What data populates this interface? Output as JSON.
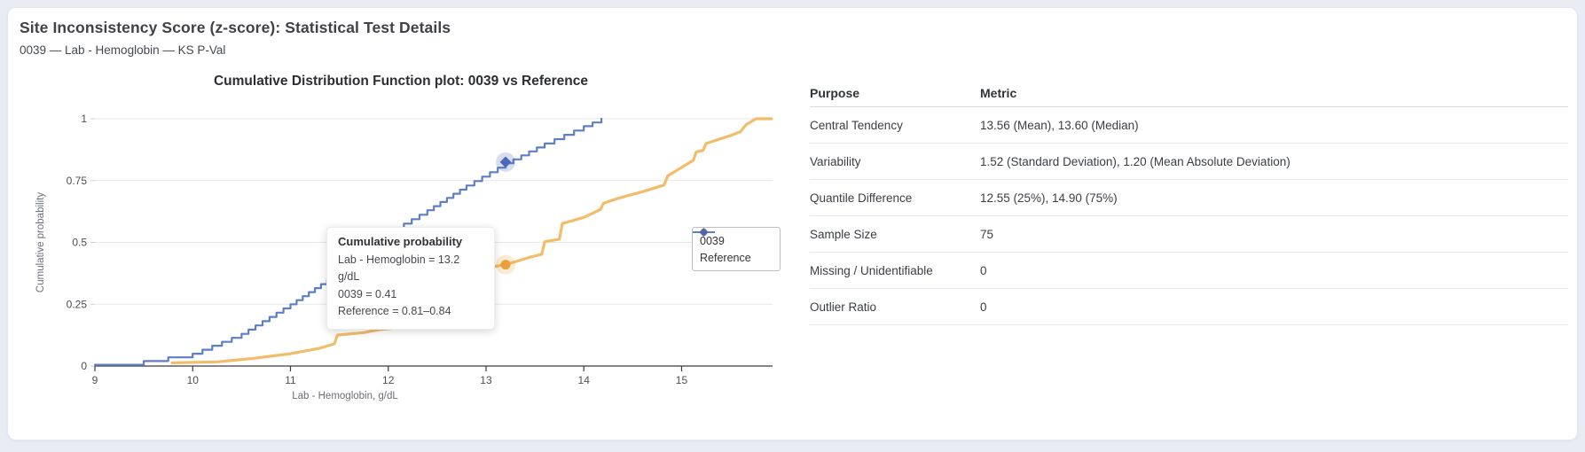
{
  "page": {
    "background_color": "#e9ecf5",
    "card_color": "#ffffff"
  },
  "header": {
    "title": "Site Inconsistency Score (z-score): Statistical Test Details",
    "subtitle": "0039 — Lab - Hemoglobin — KS P-Val"
  },
  "chart_data": {
    "type": "line",
    "title": "Cumulative Distribution Function plot: 0039 vs Reference",
    "xlabel": "Lab - Hemoglobin, g/dL",
    "ylabel": "Cumulative probability",
    "xlim": [
      9,
      15.93
    ],
    "ylim": [
      0,
      1
    ],
    "xticks": [
      9,
      10,
      11,
      12,
      13,
      14,
      15
    ],
    "yticks": [
      0,
      0.25,
      0.5,
      0.75,
      1
    ],
    "ytick_labels": [
      "0",
      "0.25",
      "0.5",
      "0.75",
      "1"
    ],
    "grid": "horizontal",
    "legend_position": "middle-right",
    "series": [
      {
        "name": "0039",
        "style": "line",
        "color": "#f2bd6b",
        "marker_color": "#e9a23b",
        "points": [
          [
            9.79,
            0.013
          ],
          [
            10.25,
            0.017
          ],
          [
            10.6,
            0.03
          ],
          [
            11.0,
            0.05
          ],
          [
            11.3,
            0.072
          ],
          [
            11.45,
            0.09
          ],
          [
            11.48,
            0.125
          ],
          [
            11.75,
            0.135
          ],
          [
            11.9,
            0.147
          ],
          [
            12.03,
            0.152
          ],
          [
            12.06,
            0.186
          ],
          [
            12.27,
            0.197
          ],
          [
            12.3,
            0.23
          ],
          [
            12.55,
            0.24
          ],
          [
            12.7,
            0.28
          ],
          [
            12.85,
            0.315
          ],
          [
            13.0,
            0.367
          ],
          [
            13.06,
            0.375
          ],
          [
            13.08,
            0.402
          ],
          [
            13.2,
            0.41
          ],
          [
            13.45,
            0.44
          ],
          [
            13.57,
            0.452
          ],
          [
            13.6,
            0.503
          ],
          [
            13.75,
            0.513
          ],
          [
            13.78,
            0.576
          ],
          [
            14.0,
            0.601
          ],
          [
            14.17,
            0.633
          ],
          [
            14.2,
            0.658
          ],
          [
            14.35,
            0.678
          ],
          [
            14.6,
            0.705
          ],
          [
            14.82,
            0.732
          ],
          [
            14.86,
            0.77
          ],
          [
            15.05,
            0.815
          ],
          [
            15.12,
            0.832
          ],
          [
            15.15,
            0.866
          ],
          [
            15.22,
            0.872
          ],
          [
            15.25,
            0.9
          ],
          [
            15.5,
            0.932
          ],
          [
            15.6,
            0.947
          ],
          [
            15.66,
            0.976
          ],
          [
            15.76,
            1.0
          ],
          [
            15.92,
            1.0
          ]
        ]
      },
      {
        "name": "Reference",
        "style": "step",
        "color": "#5e7ec5",
        "marker_color": "#4c68b4",
        "points": [
          [
            9.0,
            0.005
          ],
          [
            9.5,
            0.02
          ],
          [
            10.0,
            0.05
          ],
          [
            10.5,
            0.13
          ],
          [
            11.0,
            0.25
          ],
          [
            11.5,
            0.38
          ],
          [
            12.0,
            0.54
          ],
          [
            12.4,
            0.63
          ],
          [
            12.8,
            0.73
          ],
          [
            13.2,
            0.82
          ],
          [
            13.6,
            0.9
          ],
          [
            14.0,
            0.97
          ],
          [
            14.18,
            1.0
          ]
        ]
      }
    ],
    "highlight": {
      "x": 13.2,
      "points": [
        {
          "series": "0039",
          "value": 0.41,
          "symbol": "circle"
        },
        {
          "series": "Reference",
          "value": 0.825,
          "symbol": "diamond"
        }
      ]
    }
  },
  "tooltip": {
    "title": "Cumulative probability",
    "lines": [
      "Lab - Hemoglobin = 13.2 g/dL",
      "0039 = 0.41",
      "Reference = 0.81–0.84"
    ]
  },
  "legend": {
    "items": [
      {
        "label": "0039",
        "symbol": "circle"
      },
      {
        "label": "Reference",
        "symbol": "diamond"
      }
    ]
  },
  "table": {
    "headers": [
      "Purpose",
      "Metric"
    ],
    "rows": [
      {
        "purpose": "Central Tendency",
        "metric": "13.56 (Mean), 13.60 (Median)"
      },
      {
        "purpose": "Variability",
        "metric": "1.52 (Standard Deviation), 1.20 (Mean Absolute Deviation)"
      },
      {
        "purpose": "Quantile Difference",
        "metric": "12.55 (25%), 14.90 (75%)"
      },
      {
        "purpose": "Sample Size",
        "metric": "75"
      },
      {
        "purpose": "Missing / Unidentifiable",
        "metric": "0"
      },
      {
        "purpose": "Outlier Ratio",
        "metric": "0"
      }
    ]
  }
}
